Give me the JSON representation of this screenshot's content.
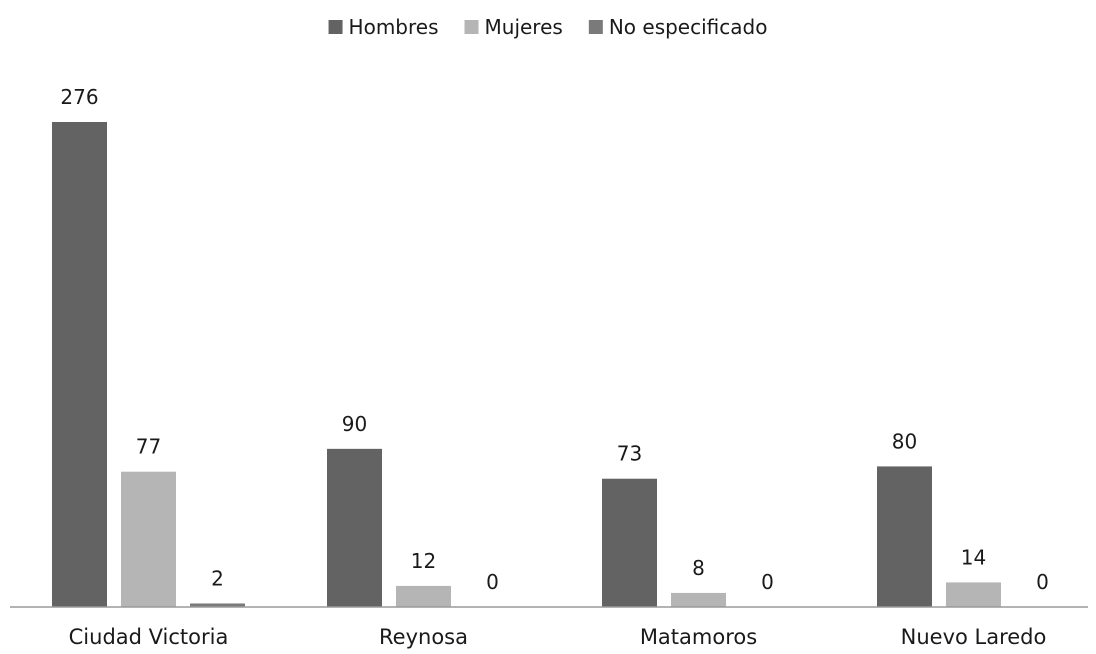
{
  "chart_data": {
    "type": "bar",
    "categories": [
      "Ciudad Victoria",
      "Reynosa",
      "Matamoros",
      "Nuevo Laredo"
    ],
    "series": [
      {
        "name": "Hombres",
        "values": [
          276,
          90,
          73,
          80
        ],
        "color": "#636363"
      },
      {
        "name": "Mujeres",
        "values": [
          77,
          12,
          8,
          14
        ],
        "color": "#b5b5b5"
      },
      {
        "name": "No especificado",
        "values": [
          2,
          0,
          0,
          0
        ],
        "color": "#7a7a7a"
      }
    ],
    "data_labels": true,
    "legend_position": "top",
    "grid": false,
    "ylim": [
      0,
      276
    ],
    "title": "",
    "xlabel": "",
    "ylabel": ""
  }
}
